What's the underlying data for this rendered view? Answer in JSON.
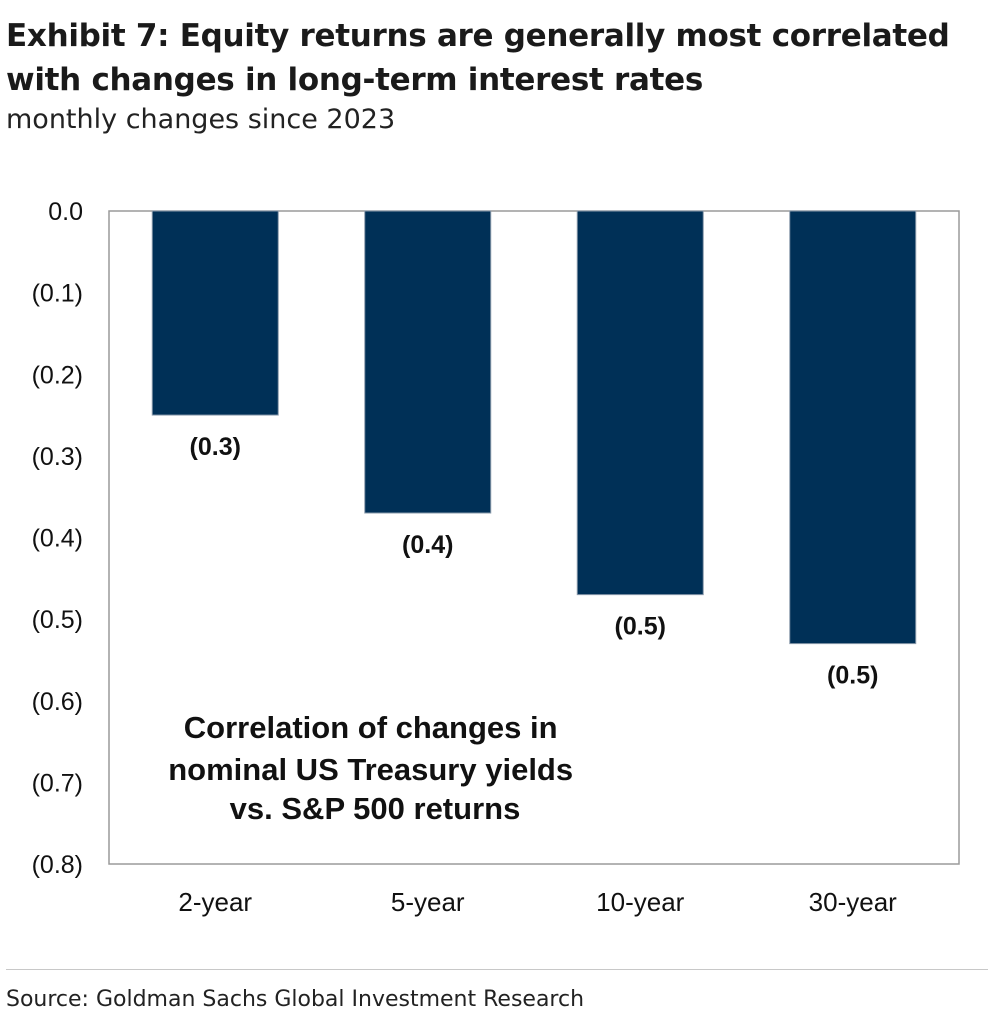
{
  "header": {
    "title": "Exhibit 7: Equity returns are generally most correlated with changes in long-term interest rates",
    "subtitle": "monthly changes since 2023"
  },
  "footer": {
    "source": "Source: Goldman Sachs Global Investment Research"
  },
  "chart_data": {
    "type": "bar",
    "categories": [
      "2-year",
      "5-year",
      "10-year",
      "30-year"
    ],
    "values": [
      -0.25,
      -0.37,
      -0.47,
      -0.53
    ],
    "data_labels": [
      "(0.3)",
      "(0.4)",
      "(0.5)",
      "(0.5)"
    ],
    "annotation": "Correlation of changes in nominal US Treasury yields vs. S&P 500 returns",
    "annotation_lines": [
      "Correlation of changes in",
      "nominal US Treasury yields",
      "vs. S&P 500 returns"
    ],
    "ylim": [
      -0.8,
      0.0
    ],
    "yticks": [
      0.0,
      -0.1,
      -0.2,
      -0.3,
      -0.4,
      -0.5,
      -0.6,
      -0.7,
      -0.8
    ],
    "ytick_labels": [
      "0.0",
      "(0.1)",
      "(0.2)",
      "(0.3)",
      "(0.4)",
      "(0.5)",
      "(0.6)",
      "(0.7)",
      "(0.8)"
    ],
    "xlabel": "",
    "ylabel": "",
    "grid": false,
    "legend": "none",
    "bar_color": "#003057"
  }
}
